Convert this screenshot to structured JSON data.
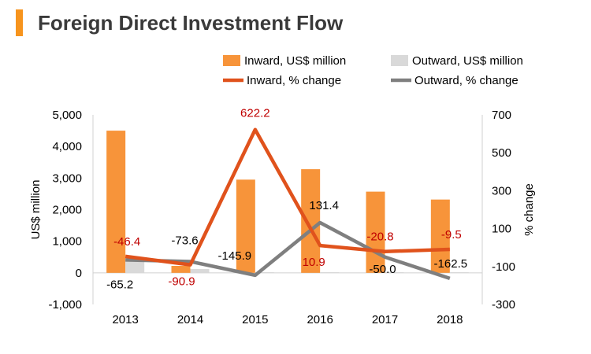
{
  "title": "Foreign Direct Investment Flow",
  "colors": {
    "accent": "#F7941D",
    "inward_bar": "#F7943A",
    "outward_bar": "#D9D9D9",
    "inward_line": "#E0521C",
    "outward_line": "#7F7F7F",
    "inward_label": "#C00000",
    "outward_label": "#000000"
  },
  "chart_data": {
    "type": "bar",
    "title": "Foreign Direct Investment Flow",
    "categories": [
      "2013",
      "2014",
      "2015",
      "2016",
      "2017",
      "2018"
    ],
    "ylabel": "US$ million",
    "y2label": "% change",
    "ylim": [
      -1000,
      5000
    ],
    "y2lim": [
      -300,
      700
    ],
    "yticks": [
      "5,000",
      "4,000",
      "3,000",
      "2,000",
      "1,000",
      "0",
      "-1,000"
    ],
    "y2ticks": [
      "700",
      "500",
      "300",
      "100",
      "-100",
      "-300"
    ],
    "grid": false,
    "legend_position": "top",
    "series": [
      {
        "name": "Inward, US$ million",
        "kind": "bar",
        "axis": "left",
        "values": [
          4500,
          220,
          2950,
          3280,
          2570,
          2320
        ]
      },
      {
        "name": "Outward, US$ million",
        "kind": "bar",
        "axis": "left",
        "values": [
          460,
          120,
          20,
          20,
          20,
          20
        ]
      },
      {
        "name": "Inward, % change",
        "kind": "line",
        "axis": "right",
        "values": [
          -46.4,
          -90.9,
          622.2,
          10.9,
          -20.8,
          -9.5
        ],
        "labels": [
          "-46.4",
          "-90.9",
          "622.2",
          "10.9",
          "-20.8",
          "-9.5"
        ]
      },
      {
        "name": "Outward, % change",
        "kind": "line",
        "axis": "right",
        "values": [
          -65.2,
          -73.6,
          -145.9,
          131.4,
          -50.0,
          -162.5
        ],
        "labels": [
          "-65.2",
          "-73.6",
          "-145.9",
          "131.4",
          "-50.0",
          "-162.5"
        ]
      }
    ]
  }
}
